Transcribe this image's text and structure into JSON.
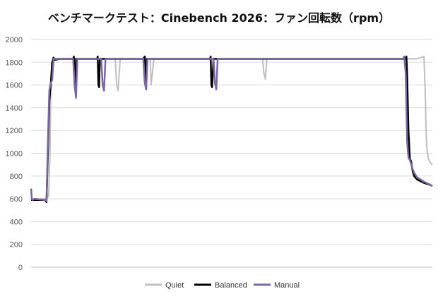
{
  "chart_data": {
    "type": "line",
    "title": "ベンチマークテスト：Cinebench 2026：ファン回転数（rpm）",
    "xlabel": "",
    "ylabel": "",
    "ylim": [
      0,
      2000
    ],
    "yticks": [
      0,
      200,
      400,
      600,
      800,
      1000,
      1200,
      1400,
      1600,
      1800,
      2000
    ],
    "grid": "horizontal",
    "legend": "bottom",
    "series": [
      {
        "name": "Quiet",
        "color": "#bfbfbf",
        "width": 2,
        "x": [
          0,
          20,
          25,
          27,
          28,
          30,
          32,
          38,
          40,
          50,
          60,
          62,
          64,
          66,
          70,
          80,
          90,
          100,
          110,
          120,
          122,
          124,
          127,
          130,
          140,
          150,
          160,
          170,
          171,
          172,
          175,
          178,
          180,
          200,
          210,
          220,
          230,
          240,
          250,
          260,
          270,
          280,
          290,
          300,
          310,
          320,
          330,
          332,
          334,
          336,
          340,
          346,
          350,
          360,
          370,
          380,
          390,
          400,
          410,
          420,
          430,
          440,
          450,
          460,
          470,
          480,
          490,
          500,
          510,
          520,
          530,
          540,
          550,
          560,
          562,
          563,
          564,
          566,
          568,
          570,
          572
        ],
        "y": [
          600,
          600,
          620,
          1000,
          1500,
          1800,
          1830,
          1830,
          1830,
          1830,
          1830,
          1600,
          1480,
          1830,
          1830,
          1830,
          1830,
          1830,
          1830,
          1830,
          1600,
          1550,
          1830,
          1830,
          1830,
          1830,
          1830,
          1830,
          1600,
          1650,
          1830,
          1830,
          1830,
          1830,
          1830,
          1830,
          1830,
          1830,
          1830,
          1830,
          1830,
          1830,
          1830,
          1830,
          1830,
          1830,
          1830,
          1700,
          1650,
          1830,
          1830,
          1830,
          1830,
          1830,
          1830,
          1830,
          1830,
          1830,
          1830,
          1830,
          1830,
          1830,
          1830,
          1830,
          1830,
          1830,
          1830,
          1830,
          1830,
          1830,
          1830,
          1830,
          1830,
          1850,
          1500,
          1200,
          1050,
          960,
          930,
          910,
          900
        ]
      },
      {
        "name": "Balanced",
        "color": "#000000",
        "width": 2.5,
        "x": [
          0,
          20,
          22,
          24,
          26,
          28,
          30,
          32,
          34,
          40,
          50,
          60,
          61,
          62,
          63,
          64,
          70,
          80,
          90,
          94,
          95,
          96,
          97,
          98,
          100,
          110,
          120,
          130,
          140,
          150,
          160,
          162,
          163,
          164,
          165,
          170,
          180,
          190,
          200,
          210,
          220,
          230,
          240,
          250,
          255,
          256,
          257,
          258,
          260,
          270,
          280,
          290,
          300,
          310,
          320,
          330,
          340,
          350,
          360,
          370,
          380,
          390,
          400,
          410,
          420,
          430,
          440,
          450,
          460,
          470,
          480,
          490,
          500,
          510,
          520,
          530,
          534,
          535,
          536,
          538,
          540,
          541,
          542,
          543,
          544,
          546,
          550,
          560,
          570,
          572
        ],
        "y": [
          590,
          590,
          570,
          1000,
          1450,
          1600,
          1800,
          1840,
          1820,
          1830,
          1830,
          1830,
          1850,
          1600,
          1550,
          1830,
          1830,
          1830,
          1830,
          1830,
          1850,
          1600,
          1580,
          1830,
          1830,
          1830,
          1830,
          1830,
          1830,
          1830,
          1830,
          1850,
          1600,
          1580,
          1830,
          1830,
          1830,
          1830,
          1830,
          1830,
          1830,
          1830,
          1830,
          1830,
          1830,
          1850,
          1600,
          1580,
          1830,
          1830,
          1830,
          1830,
          1830,
          1830,
          1830,
          1830,
          1830,
          1830,
          1830,
          1830,
          1830,
          1830,
          1830,
          1830,
          1830,
          1830,
          1830,
          1830,
          1830,
          1830,
          1830,
          1830,
          1830,
          1830,
          1830,
          1830,
          1830,
          1850,
          1700,
          1200,
          950,
          940,
          920,
          880,
          840,
          800,
          770,
          740,
          720,
          710
        ]
      },
      {
        "name": "Manual",
        "color": "#7a66a0",
        "width": 2.5,
        "x": [
          0,
          1,
          2,
          5,
          10,
          20,
          22,
          24,
          26,
          28,
          30,
          32,
          34,
          40,
          50,
          60,
          62,
          64,
          66,
          70,
          80,
          90,
          100,
          102,
          104,
          106,
          110,
          120,
          130,
          140,
          150,
          160,
          162,
          164,
          166,
          170,
          180,
          190,
          200,
          210,
          220,
          230,
          240,
          250,
          260,
          262,
          264,
          266,
          270,
          280,
          290,
          300,
          310,
          320,
          330,
          340,
          350,
          360,
          370,
          380,
          390,
          400,
          410,
          420,
          430,
          440,
          450,
          460,
          470,
          480,
          490,
          500,
          510,
          520,
          530,
          532,
          534,
          536,
          538,
          540,
          542,
          544,
          546,
          548,
          550,
          555,
          560,
          565,
          570,
          572
        ],
        "y": [
          690,
          600,
          590,
          600,
          595,
          590,
          580,
          1100,
          1550,
          1620,
          1640,
          1830,
          1830,
          1830,
          1830,
          1830,
          1600,
          1490,
          1830,
          1830,
          1830,
          1830,
          1830,
          1600,
          1550,
          1830,
          1830,
          1830,
          1830,
          1830,
          1830,
          1830,
          1620,
          1560,
          1830,
          1830,
          1830,
          1830,
          1830,
          1830,
          1830,
          1830,
          1830,
          1830,
          1830,
          1620,
          1560,
          1830,
          1830,
          1830,
          1830,
          1830,
          1830,
          1830,
          1830,
          1830,
          1830,
          1830,
          1830,
          1830,
          1830,
          1830,
          1830,
          1830,
          1830,
          1830,
          1830,
          1830,
          1830,
          1830,
          1830,
          1830,
          1830,
          1830,
          1830,
          1850,
          1700,
          1100,
          960,
          940,
          900,
          860,
          830,
          810,
          790,
          770,
          750,
          735,
          720,
          710
        ]
      }
    ]
  }
}
